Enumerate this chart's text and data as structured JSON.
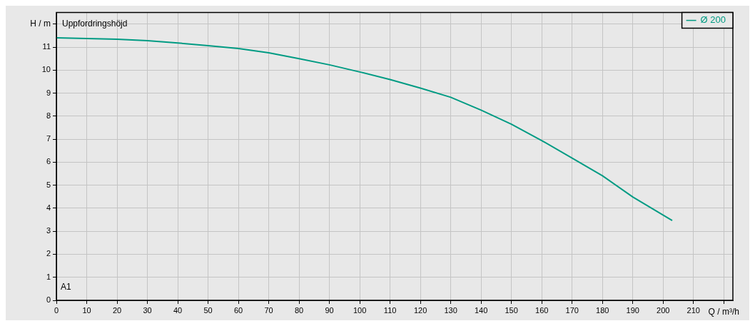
{
  "chart_data": {
    "type": "line",
    "title": "Uppfordringshöjd",
    "xlabel": "Q / m³/h",
    "ylabel": "H / m",
    "annotations": [
      "A1"
    ],
    "x": [
      0,
      10,
      20,
      30,
      40,
      50,
      60,
      70,
      80,
      90,
      100,
      110,
      120,
      130,
      140,
      150,
      160,
      170,
      180,
      190,
      203
    ],
    "series": [
      {
        "name": "Ø 200",
        "color": "#009b83",
        "values": [
          11.4,
          11.37,
          11.34,
          11.28,
          11.18,
          11.06,
          10.94,
          10.75,
          10.5,
          10.23,
          9.92,
          9.59,
          9.22,
          8.82,
          8.26,
          7.65,
          6.94,
          6.18,
          5.41,
          4.49,
          3.47
        ]
      }
    ],
    "xlim": [
      0,
      223
    ],
    "xticks": [
      0,
      10,
      20,
      30,
      40,
      50,
      60,
      70,
      80,
      90,
      100,
      110,
      120,
      130,
      140,
      150,
      160,
      170,
      180,
      190,
      200,
      210,
      {
        "value": 220,
        "label": null
      }
    ],
    "ylim": [
      0,
      12.5
    ],
    "yticks": [
      0,
      1,
      2,
      3,
      4,
      5,
      6,
      7,
      8,
      9,
      10,
      11,
      {
        "value": 12,
        "label": null
      }
    ],
    "grid": true,
    "legend": "top right",
    "marker": "none",
    "line_style": "solid"
  }
}
